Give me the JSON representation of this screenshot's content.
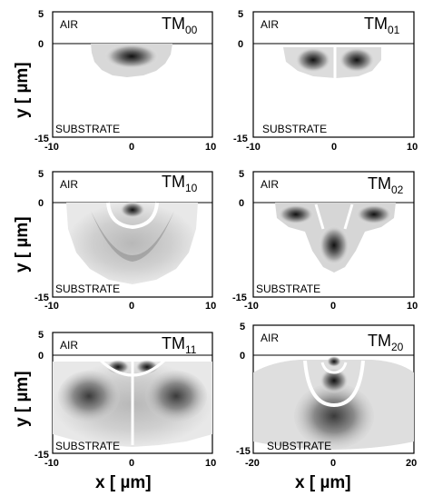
{
  "figure": {
    "y_axis_label": "y [ µm]",
    "x_axis_label": "x [ µm]",
    "air_label": "AIR",
    "substrate_label": "SUBSTRATE"
  },
  "panels": [
    {
      "id": "tm00",
      "mode_main": "TM",
      "mode_sub": "00",
      "x_ticks": [
        "-10",
        "0",
        "10"
      ],
      "y_ticks": [
        "5",
        "0",
        "-15"
      ]
    },
    {
      "id": "tm01",
      "mode_main": "TM",
      "mode_sub": "01",
      "x_ticks": [
        "-10",
        "0",
        "10"
      ],
      "y_ticks": [
        "5",
        "0",
        "-15"
      ]
    },
    {
      "id": "tm10",
      "mode_main": "TM",
      "mode_sub": "10",
      "x_ticks": [
        "-10",
        "0",
        "10"
      ],
      "y_ticks": [
        "5",
        "0",
        "-15"
      ]
    },
    {
      "id": "tm02",
      "mode_main": "TM",
      "mode_sub": "02",
      "x_ticks": [
        "-10",
        "0",
        "10"
      ],
      "y_ticks": [
        "5",
        "0",
        "-15"
      ]
    },
    {
      "id": "tm11",
      "mode_main": "TM",
      "mode_sub": "11",
      "x_ticks": [
        "-10",
        "0",
        "10"
      ],
      "y_ticks": [
        "5",
        "0",
        "-15"
      ]
    },
    {
      "id": "tm20",
      "mode_main": "TM",
      "mode_sub": "20",
      "x_ticks": [
        "-20",
        "0",
        "20"
      ],
      "y_ticks": [
        "5",
        "0",
        "-15"
      ]
    }
  ]
}
